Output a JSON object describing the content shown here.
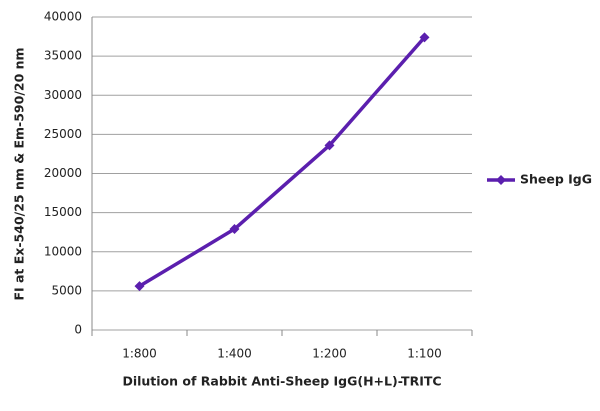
{
  "chart_data": {
    "type": "line",
    "x_label": "Dilution of Rabbit Anti-Sheep IgG(H+L)-TRITC",
    "y_label": "FI at Ex-540/25 nm & Em-590/20 nm",
    "categories": [
      "1:800",
      "1:400",
      "1:200",
      "1:100"
    ],
    "series": [
      {
        "name": "Sheep IgG",
        "color": "#5b1fae",
        "values": [
          5600,
          12900,
          23600,
          37400
        ]
      }
    ],
    "ylim": [
      0,
      40000
    ],
    "yticks": [
      0,
      5000,
      10000,
      15000,
      20000,
      25000,
      30000,
      35000,
      40000
    ],
    "grid": true,
    "legend": "right"
  }
}
